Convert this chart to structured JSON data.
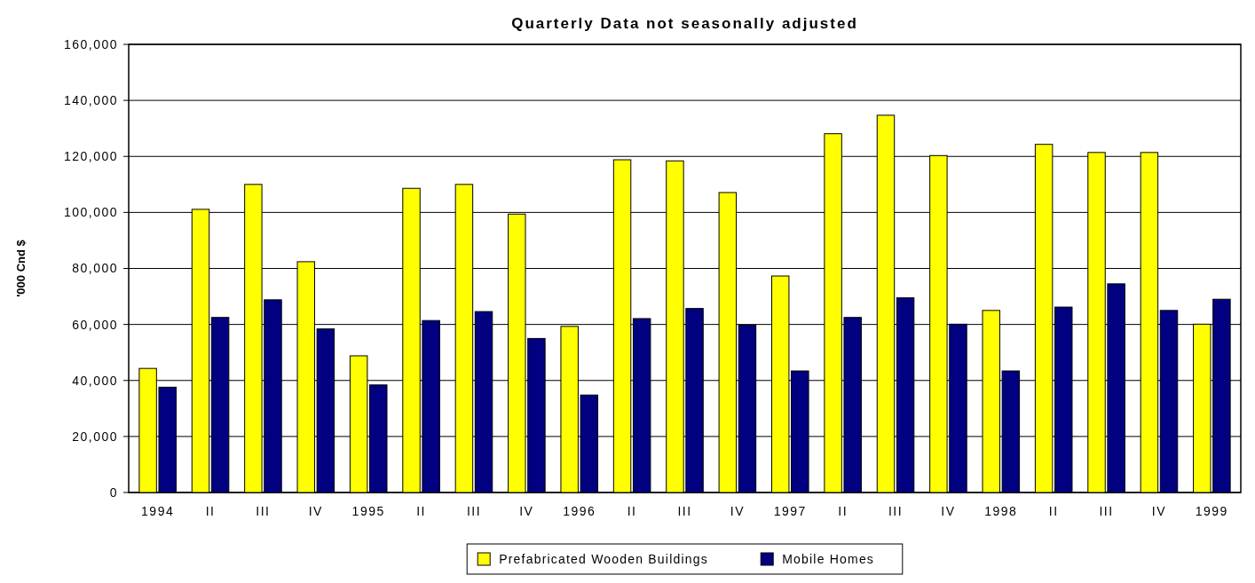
{
  "chart_data": {
    "type": "bar",
    "title": "Quarterly Data not seasonally adjusted",
    "ylabel": "'000 Cnd $",
    "categories": [
      "1994",
      "II",
      "III",
      "IV",
      "1995",
      "II",
      "III",
      "IV",
      "1996",
      "II",
      "III",
      "IV",
      "1997",
      "II",
      "III",
      "IV",
      "1998",
      "II",
      "III",
      "IV",
      "1999"
    ],
    "series": [
      {
        "name": "Prefabricated Wooden Buildings",
        "color": "#ffff00",
        "values": [
          44300,
          101100,
          110000,
          82400,
          48800,
          108600,
          110000,
          99400,
          59300,
          118800,
          118400,
          107100,
          77300,
          128100,
          134700,
          120300,
          65000,
          124300,
          121400,
          121400,
          60100
        ]
      },
      {
        "name": "Mobile Homes",
        "color": "#000080",
        "values": [
          37600,
          62500,
          68800,
          58400,
          38400,
          61400,
          64600,
          55000,
          34800,
          62100,
          65700,
          59700,
          43400,
          62500,
          69500,
          60100,
          43400,
          66200,
          74500,
          65000,
          69000
        ]
      }
    ],
    "ylim": [
      0,
      160000
    ],
    "yticks": [
      {
        "value": 0,
        "label": "0"
      },
      {
        "value": 20000,
        "label": "20,000"
      },
      {
        "value": 40000,
        "label": "40,000"
      },
      {
        "value": 60000,
        "label": "60,000"
      },
      {
        "value": 80000,
        "label": "80,000"
      },
      {
        "value": 100000,
        "label": "100,000"
      },
      {
        "value": 120000,
        "label": "120,000"
      },
      {
        "value": 140000,
        "label": "140,000"
      },
      {
        "value": 160000,
        "label": "160,000"
      }
    ],
    "grid": "y",
    "legend": "bottom"
  }
}
